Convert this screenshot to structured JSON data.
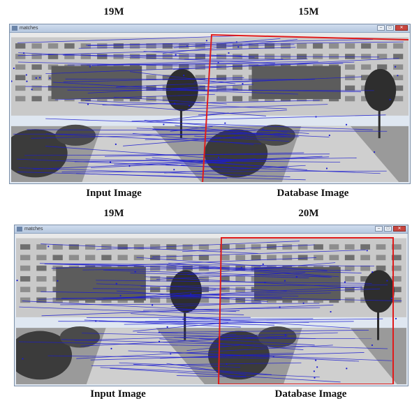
{
  "figures": [
    {
      "left_size": "19M",
      "right_size": "15M",
      "input_caption": "Input Image",
      "database_caption": "Database Image",
      "window_title": "matches",
      "window_controls": [
        "–",
        "□",
        "✕"
      ]
    },
    {
      "left_size": "19M",
      "right_size": "20M",
      "input_caption": "Input Image",
      "database_caption": "Database Image",
      "window_title": "matches",
      "window_controls": [
        "–",
        "□",
        "✕"
      ]
    }
  ],
  "colors": {
    "match_line": "#1c1ccf",
    "homography_box": "#e01b1b"
  }
}
